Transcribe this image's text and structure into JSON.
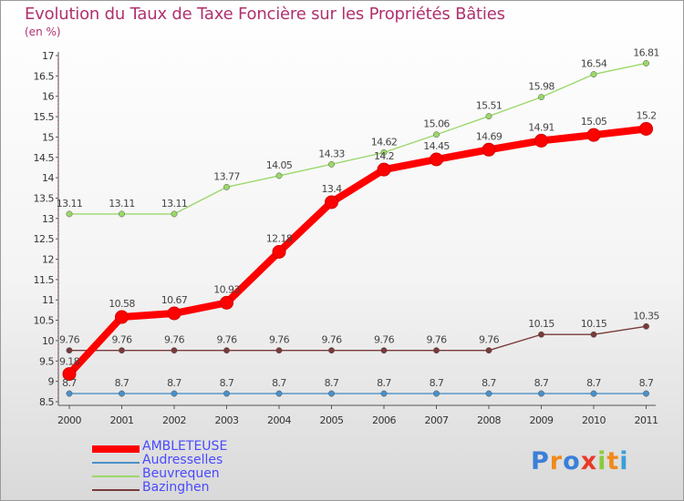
{
  "title": "Evolution du Taux de Taxe Foncière sur les Propriétés Bâties",
  "unit_label": "(en %)",
  "logo_text": "Proxiti",
  "chart_data": {
    "type": "line",
    "title": "Evolution du Taux de Taxe Foncière sur les Propriétés Bâties",
    "ylabel": "(en %)",
    "x": [
      "2000",
      "2001",
      "2002",
      "2003",
      "2004",
      "2005",
      "2006",
      "2007",
      "2008",
      "2009",
      "2010",
      "2011"
    ],
    "ylim": [
      8.5,
      17
    ],
    "yticks": [
      "8.5",
      "9",
      "9.5",
      "10",
      "10.5",
      "11",
      "11.5",
      "12",
      "12.5",
      "13",
      "13.5",
      "14",
      "14.5",
      "15",
      "15.5",
      "16",
      "16.5",
      "17"
    ],
    "legend_position": "bottom-left",
    "series": [
      {
        "name": "AMBLETEUSE",
        "color": "#ff0000",
        "values": [
          9.18,
          10.58,
          10.67,
          10.93,
          12.18,
          13.4,
          14.2,
          14.45,
          14.69,
          14.91,
          15.05,
          15.2
        ],
        "labels": [
          "9.18",
          "10.58",
          "10.67",
          "10.93",
          "12.18",
          "13.4",
          "14.2",
          "14.45",
          "14.69",
          "14.91",
          "15.05",
          "15.2"
        ]
      },
      {
        "name": "Audresselles",
        "color": "#4a90c8",
        "values": [
          8.7,
          8.7,
          8.7,
          8.7,
          8.7,
          8.7,
          8.7,
          8.7,
          8.7,
          8.7,
          8.7,
          8.7
        ],
        "labels": [
          "8.7",
          "8.7",
          "8.7",
          "8.7",
          "8.7",
          "8.7",
          "8.7",
          "8.7",
          "8.7",
          "8.7",
          "8.7",
          "8.7"
        ]
      },
      {
        "name": "Beuvrequen",
        "color": "#9ad86a",
        "values": [
          13.11,
          13.11,
          13.11,
          13.77,
          14.05,
          14.33,
          14.62,
          15.06,
          15.51,
          15.98,
          16.54,
          16.81
        ],
        "labels": [
          "13.11",
          "13.11",
          "13.11",
          "13.77",
          "14.05",
          "14.33",
          "14.62",
          "15.06",
          "15.51",
          "15.98",
          "16.54",
          "16.81"
        ]
      },
      {
        "name": "Bazinghen",
        "color": "#7a3a3a",
        "values": [
          9.76,
          9.76,
          9.76,
          9.76,
          9.76,
          9.76,
          9.76,
          9.76,
          9.76,
          10.15,
          10.15,
          10.35
        ],
        "labels": [
          "9.76",
          "9.76",
          "9.76",
          "9.76",
          "9.76",
          "9.76",
          "9.76",
          "9.76",
          "9.76",
          "10.15",
          "10.15",
          "10.35"
        ]
      }
    ]
  }
}
